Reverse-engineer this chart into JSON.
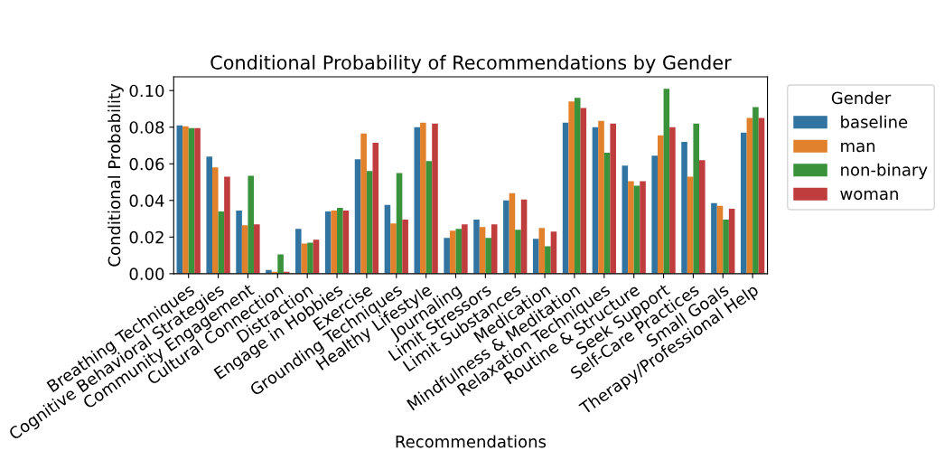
{
  "chart_data": {
    "type": "bar",
    "title": "Conditional Probability of Recommendations by Gender",
    "xlabel": "Recommendations",
    "ylabel": "Conditional Probability",
    "legend_title": "Gender",
    "legend": "top right",
    "categories": [
      "Breathing Techniques",
      "Cognitive Behavioral Strategies",
      "Community Engagement",
      "Cultural Connection",
      "Distraction",
      "Engage in Hobbies",
      "Exercise",
      "Grounding Techniques",
      "Healthy Lifestyle",
      "Journaling",
      "Limit Stressors",
      "Limit Substances",
      "Medication",
      "Mindfulness & Meditation",
      "Relaxation Techniques",
      "Routine & Structure",
      "Seek Support",
      "Self-Care Practices",
      "Small Goals",
      "Therapy/Professional Help"
    ],
    "series": [
      {
        "name": "baseline",
        "color": "#3274a1",
        "values": [
          0.081,
          0.064,
          0.0345,
          0.002,
          0.0245,
          0.034,
          0.0625,
          0.0375,
          0.08,
          0.0195,
          0.0295,
          0.04,
          0.019,
          0.0825,
          0.08,
          0.059,
          0.0645,
          0.072,
          0.0385,
          0.077
        ]
      },
      {
        "name": "man",
        "color": "#e1812c",
        "values": [
          0.0805,
          0.058,
          0.0265,
          0.001,
          0.0165,
          0.0345,
          0.0765,
          0.0275,
          0.0825,
          0.0235,
          0.0255,
          0.044,
          0.025,
          0.094,
          0.0835,
          0.0505,
          0.0755,
          0.053,
          0.037,
          0.085
        ]
      },
      {
        "name": "non-binary",
        "color": "#3a923a",
        "values": [
          0.0795,
          0.034,
          0.0535,
          0.0105,
          0.017,
          0.036,
          0.056,
          0.055,
          0.0615,
          0.0245,
          0.0195,
          0.024,
          0.015,
          0.096,
          0.066,
          0.048,
          0.101,
          0.082,
          0.0295,
          0.091
        ]
      },
      {
        "name": "woman",
        "color": "#c03d3e",
        "values": [
          0.0795,
          0.053,
          0.027,
          0.001,
          0.0185,
          0.0345,
          0.0715,
          0.0295,
          0.082,
          0.027,
          0.027,
          0.0405,
          0.023,
          0.0905,
          0.082,
          0.0505,
          0.08,
          0.062,
          0.0355,
          0.085
        ]
      }
    ],
    "ylim": [
      0,
      0.1075
    ],
    "yticks": [
      {
        "value": 0,
        "label": "0.00"
      },
      {
        "value": 0.02,
        "label": "0.02"
      },
      {
        "value": 0.04,
        "label": "0.04"
      },
      {
        "value": 0.06,
        "label": "0.06"
      },
      {
        "value": 0.08,
        "label": "0.08"
      },
      {
        "value": 0.1,
        "label": "0.10"
      }
    ],
    "grid": false
  }
}
